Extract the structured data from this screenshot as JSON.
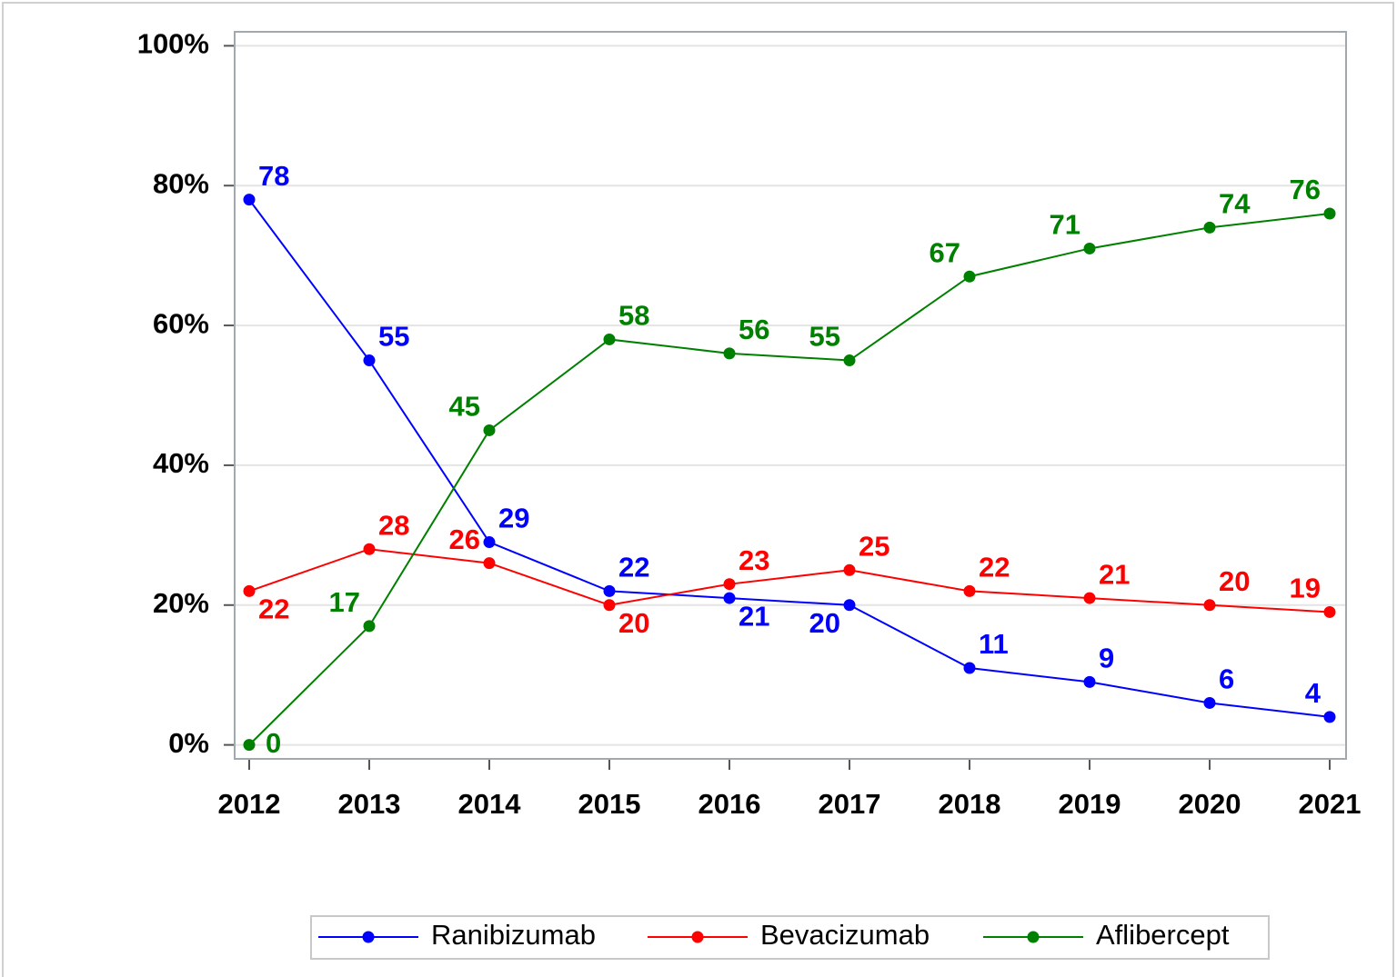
{
  "chart_data": {
    "type": "line",
    "categories": [
      "2012",
      "2013",
      "2014",
      "2015",
      "2016",
      "2017",
      "2018",
      "2019",
      "2020",
      "2021"
    ],
    "series": [
      {
        "name": "Ranibizumab",
        "color": "#0000ff",
        "values": [
          78,
          55,
          29,
          22,
          21,
          20,
          11,
          9,
          6,
          4
        ]
      },
      {
        "name": "Bevacizumab",
        "color": "#ff0000",
        "values": [
          22,
          28,
          26,
          20,
          23,
          25,
          22,
          21,
          20,
          19
        ]
      },
      {
        "name": "Aflibercept",
        "color": "#008000",
        "values": [
          0,
          17,
          45,
          58,
          56,
          55,
          67,
          71,
          74,
          76
        ]
      }
    ],
    "ylim": [
      -2,
      102
    ],
    "yticks": [
      {
        "value": 0,
        "label": "0%"
      },
      {
        "value": 20,
        "label": "20%"
      },
      {
        "value": 40,
        "label": "40%"
      },
      {
        "value": 60,
        "label": "60%"
      },
      {
        "value": 80,
        "label": "80%"
      },
      {
        "value": 100,
        "label": "100%"
      }
    ],
    "grid": true,
    "legend": "bottom"
  }
}
